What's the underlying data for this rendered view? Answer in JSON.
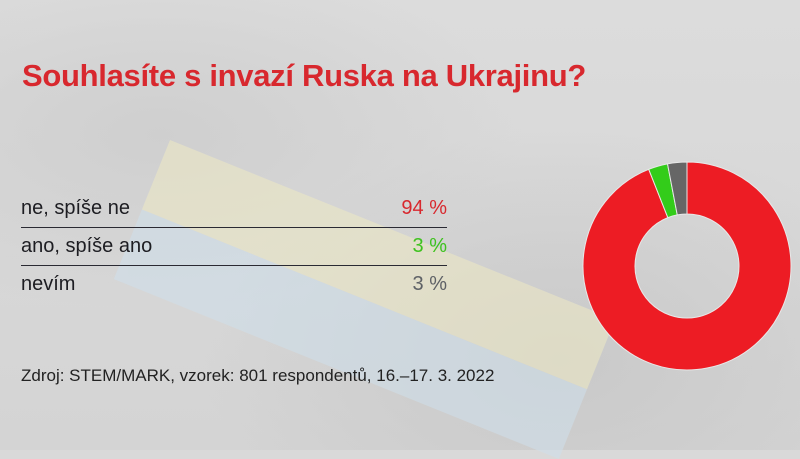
{
  "title": "Souhlasíte s invazí Ruska na Ukrajinu?",
  "rows": [
    {
      "label": "ne, spíše ne",
      "value": "94 %",
      "color": "#d8282e"
    },
    {
      "label": "ano, spíše ano",
      "value": "3 %",
      "color": "#3ec21e"
    },
    {
      "label": "nevím",
      "value": "3 %",
      "color": "#5e6166"
    }
  ],
  "source": "Zdroj: STEM/MARK, vzorek: 801 respondentů, 16.–17. 3. 2022",
  "chart_data": {
    "type": "pie",
    "title": "Souhlasíte s invazí Ruska na Ukrajinu?",
    "categories": [
      "ne, spíše ne",
      "ano, spíše ano",
      "nevím"
    ],
    "values": [
      94,
      3,
      3
    ],
    "unit": "%",
    "colors": [
      "#ed1c24",
      "#33cc1a",
      "#666666"
    ],
    "donut": true,
    "legend_position": "left"
  }
}
